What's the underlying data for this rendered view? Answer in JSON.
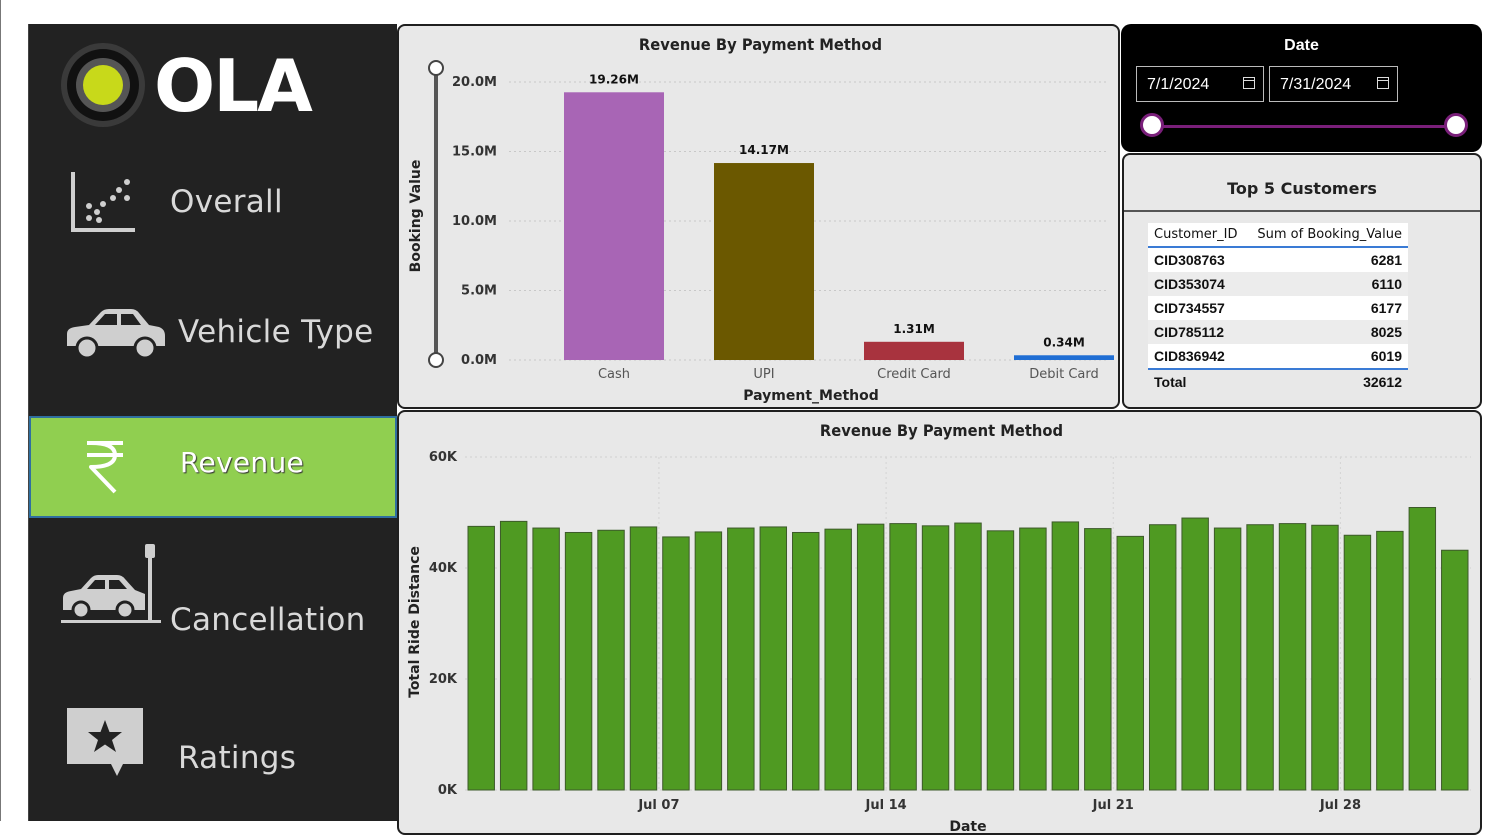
{
  "brand": {
    "logo_text": "OLA"
  },
  "nav": [
    {
      "label": "Overall",
      "icon": "scatter-chart-icon"
    },
    {
      "label": "Vehicle Type",
      "icon": "car-icon"
    },
    {
      "label": "Revenue",
      "icon": "rupee-icon",
      "active": true
    },
    {
      "label": "Cancellation",
      "icon": "car-crash-icon"
    },
    {
      "label": "Ratings",
      "icon": "star-speech-bubble-icon"
    }
  ],
  "colors": {
    "sidebar": "#222222",
    "active_nav": "#90cf50",
    "daily_bars": "#4f9a22",
    "slider_track": "#7a1f7a"
  },
  "date_filter": {
    "title": "Date",
    "start": "7/1/2024",
    "end": "7/31/2024"
  },
  "top_customers": {
    "title": "Top 5 Customers",
    "columns": [
      "Customer_ID",
      "Sum of Booking_Value"
    ],
    "rows": [
      [
        "CID308763",
        "6281"
      ],
      [
        "CID353074",
        "6110"
      ],
      [
        "CID734557",
        "6177"
      ],
      [
        "CID785112",
        "8025"
      ],
      [
        "CID836942",
        "6019"
      ]
    ],
    "total_label": "Total",
    "total_value": "32612"
  },
  "chart_data": [
    {
      "type": "bar",
      "title": "Revenue By Payment Method",
      "xlabel": "Payment_Method",
      "ylabel": "Booking Value",
      "categories": [
        "Cash",
        "UPI",
        "Credit Card",
        "Debit Card"
      ],
      "values": [
        19260000,
        14170000,
        1310000,
        340000
      ],
      "data_labels": [
        "19.26M",
        "14.17M",
        "1.31M",
        "0.34M"
      ],
      "colors": [
        "#a865b5",
        "#6b5800",
        "#a8333e",
        "#1f6ed4"
      ],
      "yticks": [
        "0.0M",
        "5.0M",
        "10.0M",
        "15.0M",
        "20.0M"
      ],
      "ylim": [
        0,
        20000000
      ],
      "grid": true
    },
    {
      "type": "bar",
      "title": "Revenue By Payment Method",
      "xlabel": "Date",
      "ylabel": "Total Ride Distance",
      "x": [
        "2024-07-01",
        "2024-07-02",
        "2024-07-03",
        "2024-07-04",
        "2024-07-05",
        "2024-07-06",
        "2024-07-07",
        "2024-07-08",
        "2024-07-09",
        "2024-07-10",
        "2024-07-11",
        "2024-07-12",
        "2024-07-13",
        "2024-07-14",
        "2024-07-15",
        "2024-07-16",
        "2024-07-17",
        "2024-07-18",
        "2024-07-19",
        "2024-07-20",
        "2024-07-21",
        "2024-07-22",
        "2024-07-23",
        "2024-07-24",
        "2024-07-25",
        "2024-07-26",
        "2024-07-27",
        "2024-07-28",
        "2024-07-29",
        "2024-07-30",
        "2024-07-31"
      ],
      "values": [
        47500,
        48400,
        47200,
        46400,
        46800,
        47400,
        45600,
        46500,
        47200,
        47400,
        46400,
        47000,
        47900,
        48000,
        47600,
        48100,
        46700,
        47200,
        48300,
        47100,
        45700,
        47800,
        49000,
        47200,
        47800,
        48000,
        47700,
        45900,
        46600,
        50900,
        43200
      ],
      "xticks": [
        "Jul 07",
        "Jul 14",
        "Jul 21",
        "Jul 28"
      ],
      "yticks": [
        "0K",
        "20K",
        "40K",
        "60K"
      ],
      "ylim": [
        0,
        60000
      ],
      "grid": true
    }
  ]
}
